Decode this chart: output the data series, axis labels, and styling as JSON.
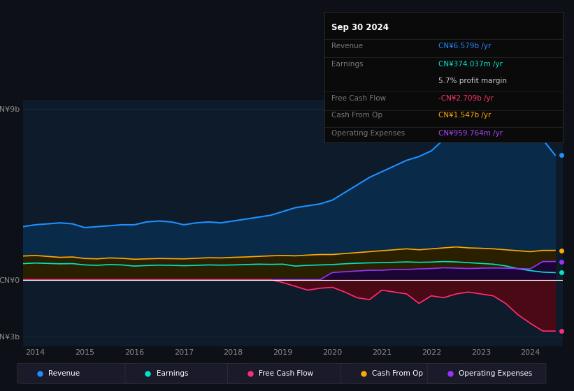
{
  "background_color": "#0d1117",
  "plot_bg_color": "#0d1b2a",
  "colors": {
    "revenue": "#1e90ff",
    "earnings": "#00e5c8",
    "fcf": "#ff2d78",
    "cashop": "#ffaa00",
    "opex": "#9933ff"
  },
  "fill_colors": {
    "revenue": "#0a2a4a",
    "earnings": "#0a3535",
    "fcf": "#4a0a15",
    "cashop": "#2a2000",
    "opex": "#1a0535"
  },
  "info_box": {
    "date": "Sep 30 2024",
    "revenue_label": "Revenue",
    "revenue_value": "CN¥6.579b /yr",
    "revenue_color": "#2288ff",
    "earnings_label": "Earnings",
    "earnings_value": "CN¥374.037m /yr",
    "earnings_color": "#00e5c8",
    "margin_value": "5.7% profit margin",
    "margin_color": "#cccccc",
    "fcf_label": "Free Cash Flow",
    "fcf_value": "-CN¥2.709b /yr",
    "fcf_color": "#ff3366",
    "cashop_label": "Cash From Op",
    "cashop_value": "CN¥1.547b /yr",
    "cashop_color": "#ffaa00",
    "opex_label": "Operating Expenses",
    "opex_value": "CN¥959.764m /yr",
    "opex_color": "#aa44ff"
  },
  "years": [
    2013.75,
    2014.0,
    2014.25,
    2014.5,
    2014.75,
    2015.0,
    2015.25,
    2015.5,
    2015.75,
    2016.0,
    2016.25,
    2016.5,
    2016.75,
    2017.0,
    2017.25,
    2017.5,
    2017.75,
    2018.0,
    2018.25,
    2018.5,
    2018.75,
    2019.0,
    2019.25,
    2019.5,
    2019.75,
    2020.0,
    2020.25,
    2020.5,
    2020.75,
    2021.0,
    2021.25,
    2021.5,
    2021.75,
    2022.0,
    2022.25,
    2022.5,
    2022.75,
    2023.0,
    2023.25,
    2023.5,
    2023.75,
    2024.0,
    2024.25,
    2024.5
  ],
  "revenue": [
    2.8,
    2.9,
    2.95,
    3.0,
    2.95,
    2.75,
    2.8,
    2.85,
    2.9,
    2.9,
    3.05,
    3.1,
    3.05,
    2.9,
    3.0,
    3.05,
    3.0,
    3.1,
    3.2,
    3.3,
    3.4,
    3.6,
    3.8,
    3.9,
    4.0,
    4.2,
    4.6,
    5.0,
    5.4,
    5.7,
    6.0,
    6.3,
    6.5,
    6.8,
    7.4,
    8.0,
    8.5,
    8.8,
    9.2,
    8.7,
    8.2,
    7.8,
    7.4,
    6.579
  ],
  "earnings": [
    0.85,
    0.88,
    0.86,
    0.84,
    0.85,
    0.78,
    0.76,
    0.8,
    0.78,
    0.72,
    0.75,
    0.77,
    0.76,
    0.74,
    0.76,
    0.78,
    0.77,
    0.78,
    0.8,
    0.82,
    0.81,
    0.82,
    0.72,
    0.76,
    0.78,
    0.8,
    0.84,
    0.87,
    0.89,
    0.9,
    0.92,
    0.94,
    0.92,
    0.93,
    0.96,
    0.94,
    0.9,
    0.86,
    0.82,
    0.73,
    0.58,
    0.48,
    0.4,
    0.374
  ],
  "cashop": [
    1.25,
    1.28,
    1.23,
    1.18,
    1.2,
    1.12,
    1.1,
    1.15,
    1.13,
    1.08,
    1.1,
    1.12,
    1.11,
    1.1,
    1.13,
    1.16,
    1.15,
    1.18,
    1.2,
    1.23,
    1.26,
    1.28,
    1.26,
    1.3,
    1.33,
    1.33,
    1.38,
    1.43,
    1.48,
    1.53,
    1.58,
    1.63,
    1.58,
    1.63,
    1.68,
    1.73,
    1.68,
    1.66,
    1.63,
    1.58,
    1.53,
    1.48,
    1.547,
    1.547
  ],
  "opex": [
    0.0,
    0.0,
    0.0,
    0.0,
    0.0,
    0.0,
    0.0,
    0.0,
    0.0,
    0.0,
    0.0,
    0.0,
    0.0,
    0.0,
    0.0,
    0.0,
    0.0,
    0.0,
    0.0,
    0.0,
    0.0,
    0.0,
    0.0,
    0.0,
    0.0,
    0.38,
    0.42,
    0.46,
    0.5,
    0.5,
    0.54,
    0.54,
    0.57,
    0.59,
    0.63,
    0.61,
    0.59,
    0.61,
    0.62,
    0.61,
    0.59,
    0.57,
    0.96,
    0.96
  ],
  "fcf": [
    0.0,
    0.0,
    0.0,
    0.0,
    0.0,
    0.0,
    0.0,
    0.0,
    0.0,
    0.0,
    0.0,
    0.0,
    0.0,
    0.0,
    0.0,
    0.0,
    0.0,
    0.0,
    0.0,
    0.0,
    0.0,
    -0.15,
    -0.35,
    -0.55,
    -0.45,
    -0.4,
    -0.65,
    -0.95,
    -1.05,
    -0.55,
    -0.65,
    -0.75,
    -1.25,
    -0.85,
    -0.95,
    -0.75,
    -0.65,
    -0.75,
    -0.85,
    -1.25,
    -1.85,
    -2.3,
    -2.709,
    -2.709
  ],
  "ylim": [
    -3.5,
    9.5
  ],
  "ytick_positions": [
    -3.0,
    0.0,
    9.0
  ],
  "ytick_labels": [
    "-CN¥3b",
    "CN¥0",
    "CN¥9b"
  ],
  "legend_items": [
    {
      "label": "Revenue",
      "color": "#1e90ff"
    },
    {
      "label": "Earnings",
      "color": "#00e5c8"
    },
    {
      "label": "Free Cash Flow",
      "color": "#ff2d78"
    },
    {
      "label": "Cash From Op",
      "color": "#ffaa00"
    },
    {
      "label": "Operating Expenses",
      "color": "#9933ff"
    }
  ]
}
